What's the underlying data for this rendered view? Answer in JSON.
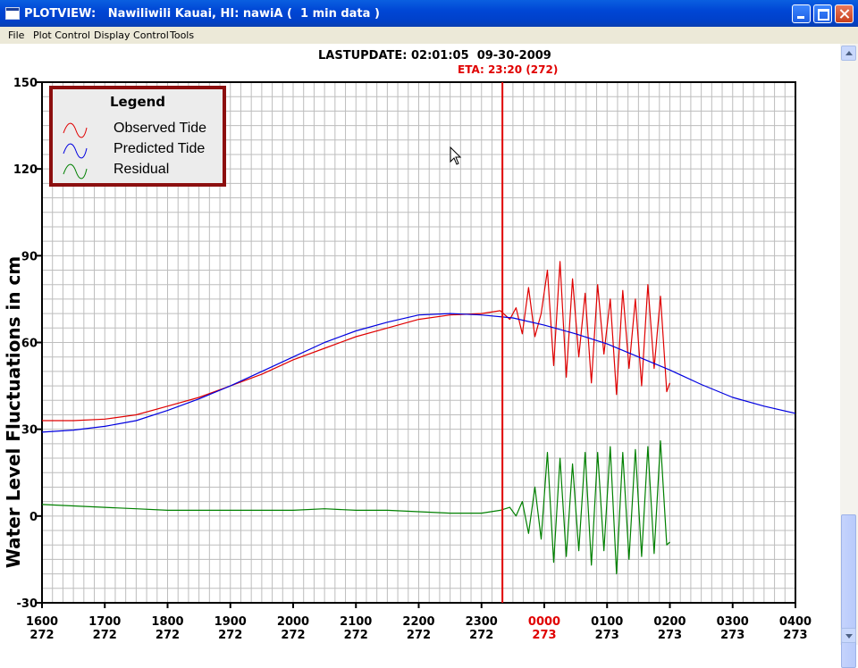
{
  "window": {
    "title": "PLOTVIEW:   Nawiliwili Kauai, HI: nawiA (  1 min data )"
  },
  "menu": [
    "File",
    "Plot Control",
    "Display Control",
    "Tools"
  ],
  "header": {
    "last_update": "LASTUPDATE: 02:01:05  09-30-2009",
    "eta": "ETA: 23:20 (272)"
  },
  "legend": {
    "title": "Legend",
    "items": [
      {
        "label": "Observed Tide",
        "color": "#e00000"
      },
      {
        "label": "Predicted Tide",
        "color": "#0000e0"
      },
      {
        "label": "Residual",
        "color": "#008000"
      }
    ]
  },
  "colors": {
    "observed": "#e00000",
    "predicted": "#0000e0",
    "residual": "#008000",
    "eta_line": "#e00000",
    "legend_border": "#8c0f0f",
    "grid": "#bdbdbd"
  },
  "chart_data": {
    "type": "line",
    "ylabel": "Water Level Fluctuations in cm",
    "ylim": [
      -30,
      150
    ],
    "yticks": [
      -30,
      0,
      30,
      60,
      90,
      120,
      150
    ],
    "xlim": [
      16.0,
      28.0
    ],
    "xticks": [
      {
        "hour": 16,
        "label": "1600",
        "day": "272",
        "highlight": false
      },
      {
        "hour": 17,
        "label": "1700",
        "day": "272",
        "highlight": false
      },
      {
        "hour": 18,
        "label": "1800",
        "day": "272",
        "highlight": false
      },
      {
        "hour": 19,
        "label": "1900",
        "day": "272",
        "highlight": false
      },
      {
        "hour": 20,
        "label": "2000",
        "day": "272",
        "highlight": false
      },
      {
        "hour": 21,
        "label": "2100",
        "day": "272",
        "highlight": false
      },
      {
        "hour": 22,
        "label": "2200",
        "day": "272",
        "highlight": false
      },
      {
        "hour": 23,
        "label": "2300",
        "day": "272",
        "highlight": false
      },
      {
        "hour": 24,
        "label": "0000",
        "day": "273",
        "highlight": true
      },
      {
        "hour": 25,
        "label": "0100",
        "day": "273",
        "highlight": false
      },
      {
        "hour": 26,
        "label": "0200",
        "day": "273",
        "highlight": false
      },
      {
        "hour": 27,
        "label": "0300",
        "day": "273",
        "highlight": false
      },
      {
        "hour": 28,
        "label": "0400",
        "day": "273",
        "highlight": false
      }
    ],
    "eta_hour": 23.333,
    "grid": true,
    "legend_position": "top-left",
    "series": [
      {
        "name": "Observed Tide",
        "x": [
          16.0,
          16.5,
          17.0,
          17.5,
          18.0,
          18.5,
          19.0,
          19.5,
          20.0,
          20.5,
          21.0,
          21.5,
          22.0,
          22.5,
          23.0,
          23.3,
          23.45,
          23.55,
          23.65,
          23.75,
          23.85,
          23.95,
          24.05,
          24.15,
          24.25,
          24.35,
          24.45,
          24.55,
          24.65,
          24.75,
          24.85,
          24.95,
          25.05,
          25.15,
          25.25,
          25.35,
          25.45,
          25.55,
          25.65,
          25.75,
          25.85,
          25.95,
          26.0
        ],
        "y": [
          33,
          33,
          33.5,
          35,
          38,
          41,
          45,
          49,
          54,
          58,
          62,
          65,
          68,
          69.5,
          70,
          71,
          68,
          72,
          63,
          79,
          62,
          70,
          85,
          52,
          88,
          48,
          82,
          55,
          77,
          46,
          80,
          56,
          75,
          42,
          78,
          51,
          75,
          45,
          80,
          51,
          76,
          43,
          46
        ]
      },
      {
        "name": "Predicted Tide",
        "x": [
          16.0,
          16.5,
          17.0,
          17.5,
          18.0,
          18.5,
          19.0,
          19.5,
          20.0,
          20.5,
          21.0,
          21.5,
          22.0,
          22.5,
          23.0,
          23.5,
          24.0,
          24.5,
          25.0,
          25.5,
          26.0,
          26.5,
          27.0,
          27.5,
          28.0
        ],
        "y": [
          29,
          29.7,
          31,
          33,
          36.5,
          40.5,
          45,
          50,
          55,
          60,
          64,
          67,
          69.5,
          70,
          69.5,
          68.5,
          66,
          63,
          59.5,
          55,
          50.5,
          45.5,
          41,
          38,
          35.5
        ]
      },
      {
        "name": "Residual",
        "x": [
          16.0,
          16.5,
          17.0,
          17.5,
          18.0,
          18.5,
          19.0,
          19.5,
          20.0,
          20.5,
          21.0,
          21.5,
          22.0,
          22.5,
          23.0,
          23.3,
          23.45,
          23.55,
          23.65,
          23.75,
          23.85,
          23.95,
          24.05,
          24.15,
          24.25,
          24.35,
          24.45,
          24.55,
          24.65,
          24.75,
          24.85,
          24.95,
          25.05,
          25.15,
          25.25,
          25.35,
          25.45,
          25.55,
          25.65,
          25.75,
          25.85,
          25.95,
          26.0
        ],
        "y": [
          4,
          3.5,
          3,
          2.5,
          2,
          2,
          2,
          2,
          2,
          2.5,
          2,
          2,
          1.5,
          1,
          1,
          2,
          3,
          0,
          5,
          -6,
          10,
          -8,
          22,
          -16,
          20,
          -14,
          18,
          -12,
          22,
          -17,
          22,
          -12,
          24,
          -20,
          22,
          -15,
          23,
          -14,
          24,
          -13,
          26,
          -10,
          -9
        ]
      }
    ]
  }
}
